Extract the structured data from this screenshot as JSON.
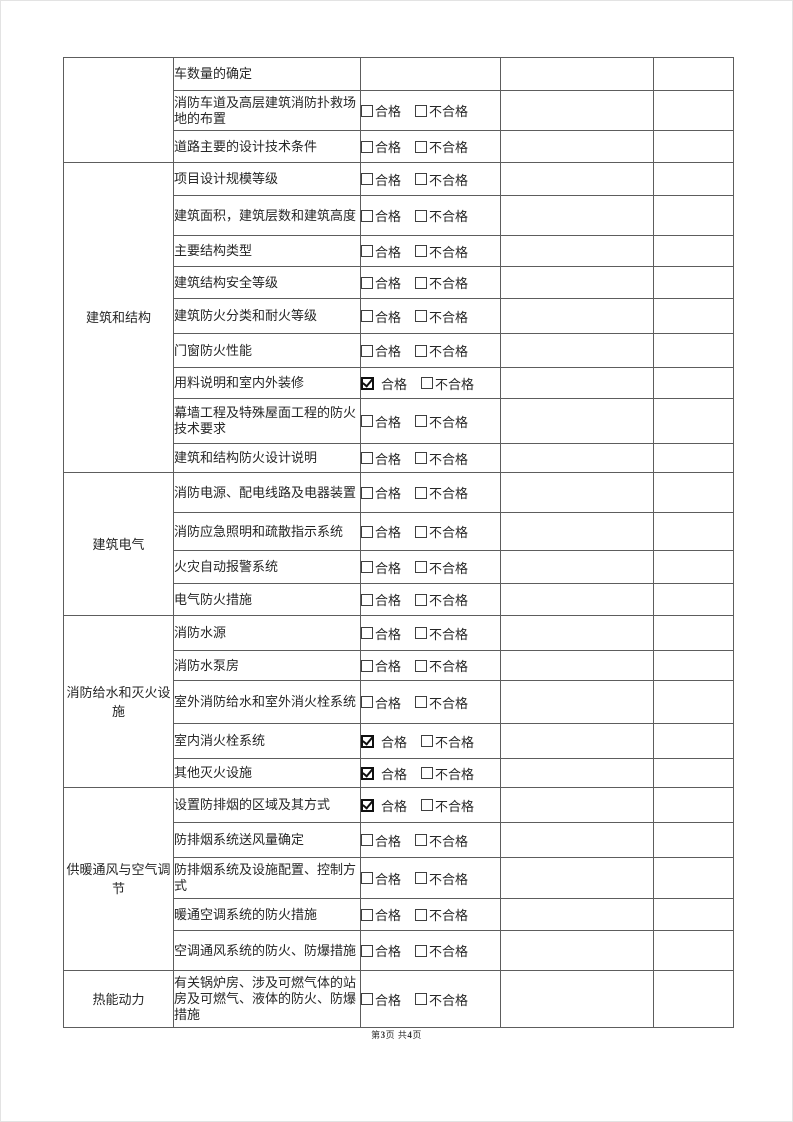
{
  "document": {
    "footer": {
      "prefix": "第",
      "page_number": "3",
      "middle": "页 共",
      "total_pages": "4",
      "suffix": "页"
    }
  },
  "options": {
    "pass": "合格",
    "fail": "不合格"
  },
  "table": {
    "sections": [
      {
        "category": "",
        "rows": [
          {
            "item": "车数量的确定",
            "has_options": false,
            "pass_checked": false,
            "fail_checked": false,
            "result": "",
            "note": ""
          },
          {
            "item": "消防车道及高层建筑消防扑救场地的布置",
            "has_options": true,
            "pass_checked": false,
            "fail_checked": false,
            "result": "",
            "note": ""
          },
          {
            "item": "道路主要的设计技术条件",
            "has_options": true,
            "pass_checked": false,
            "fail_checked": false,
            "result": "",
            "note": ""
          }
        ]
      },
      {
        "category": "建筑和结构",
        "rows": [
          {
            "item": "项目设计规模等级",
            "has_options": true,
            "pass_checked": false,
            "fail_checked": false,
            "result": "",
            "note": ""
          },
          {
            "item": "建筑面积，建筑层数和建筑高度",
            "has_options": true,
            "pass_checked": false,
            "fail_checked": false,
            "result": "",
            "note": ""
          },
          {
            "item": "主要结构类型",
            "has_options": true,
            "pass_checked": false,
            "fail_checked": false,
            "result": "",
            "note": ""
          },
          {
            "item": "建筑结构安全等级",
            "has_options": true,
            "pass_checked": false,
            "fail_checked": false,
            "result": "",
            "note": ""
          },
          {
            "item": "建筑防火分类和耐火等级",
            "has_options": true,
            "pass_checked": false,
            "fail_checked": false,
            "result": "",
            "note": ""
          },
          {
            "item": "门窗防火性能",
            "has_options": true,
            "pass_checked": false,
            "fail_checked": false,
            "result": "",
            "note": ""
          },
          {
            "item": "用料说明和室内外装修",
            "has_options": true,
            "pass_checked": true,
            "fail_checked": false,
            "result": "",
            "note": ""
          },
          {
            "item": "幕墙工程及特殊屋面工程的防火技术要求",
            "has_options": true,
            "pass_checked": false,
            "fail_checked": false,
            "result": "",
            "note": ""
          },
          {
            "item": "建筑和结构防火设计说明",
            "has_options": true,
            "pass_checked": false,
            "fail_checked": false,
            "result": "",
            "note": ""
          }
        ]
      },
      {
        "category": "建筑电气",
        "rows": [
          {
            "item": "消防电源、配电线路及电器装置",
            "has_options": true,
            "pass_checked": false,
            "fail_checked": false,
            "result": "",
            "note": ""
          },
          {
            "item": "消防应急照明和疏散指示系统",
            "has_options": true,
            "pass_checked": false,
            "fail_checked": false,
            "result": "",
            "note": ""
          },
          {
            "item": "火灾自动报警系统",
            "has_options": true,
            "pass_checked": false,
            "fail_checked": false,
            "result": "",
            "note": ""
          },
          {
            "item": "电气防火措施",
            "has_options": true,
            "pass_checked": false,
            "fail_checked": false,
            "result": "",
            "note": ""
          }
        ]
      },
      {
        "category": "消防给水和灭火设施",
        "rows": [
          {
            "item": "消防水源",
            "has_options": true,
            "pass_checked": false,
            "fail_checked": false,
            "result": "",
            "note": ""
          },
          {
            "item": "消防水泵房",
            "has_options": true,
            "pass_checked": false,
            "fail_checked": false,
            "result": "",
            "note": ""
          },
          {
            "item": "室外消防给水和室外消火栓系统",
            "has_options": true,
            "pass_checked": false,
            "fail_checked": false,
            "result": "",
            "note": ""
          },
          {
            "item": "室内消火栓系统",
            "has_options": true,
            "pass_checked": true,
            "fail_checked": false,
            "result": "",
            "note": ""
          },
          {
            "item": "其他灭火设施",
            "has_options": true,
            "pass_checked": true,
            "fail_checked": false,
            "result": "",
            "note": ""
          }
        ]
      },
      {
        "category": "供暖通风与空气调节",
        "rows": [
          {
            "item": "设置防排烟的区域及其方式",
            "has_options": true,
            "pass_checked": true,
            "fail_checked": false,
            "result": "",
            "note": ""
          },
          {
            "item": "防排烟系统送风量确定",
            "has_options": true,
            "pass_checked": false,
            "fail_checked": false,
            "result": "",
            "note": ""
          },
          {
            "item": "防排烟系统及设施配置、控制方式",
            "has_options": true,
            "pass_checked": false,
            "fail_checked": false,
            "result": "",
            "note": ""
          },
          {
            "item": "暖通空调系统的防火措施",
            "has_options": true,
            "pass_checked": false,
            "fail_checked": false,
            "result": "",
            "note": ""
          },
          {
            "item": "空调通风系统的防火、防爆措施",
            "has_options": true,
            "pass_checked": false,
            "fail_checked": false,
            "result": "",
            "note": ""
          }
        ]
      },
      {
        "category": "热能动力",
        "rows": [
          {
            "item": "有关锅炉房、涉及可燃气体的站房及可燃气、液体的防火、防爆措施",
            "has_options": true,
            "pass_checked": false,
            "fail_checked": false,
            "result": "",
            "note": ""
          }
        ]
      }
    ]
  }
}
